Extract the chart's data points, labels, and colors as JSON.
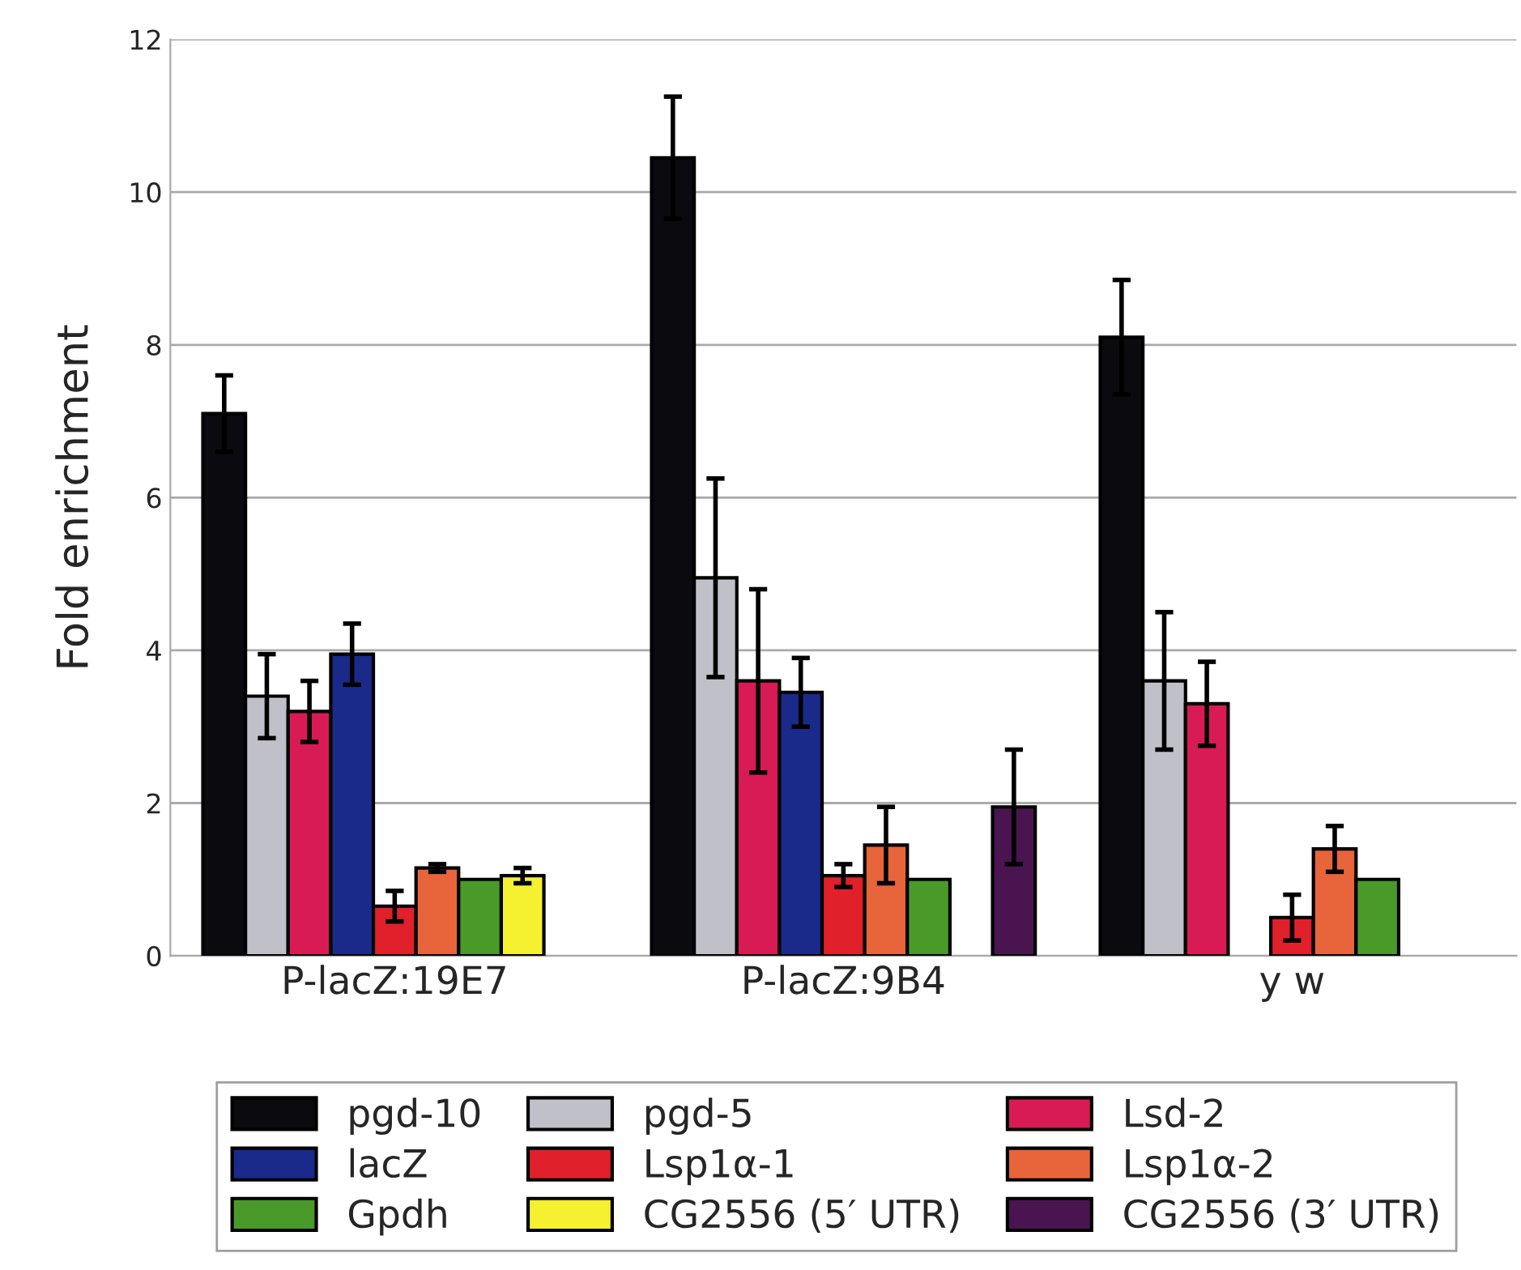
{
  "chart_data": {
    "type": "bar",
    "ylabel": "Fold enrichment",
    "categories": [
      "P-lacZ:19E7",
      "P-lacZ:9B4",
      "y w"
    ],
    "series": [
      {
        "name": "pgd-10",
        "color": "#0a0a0f",
        "values": [
          7.1,
          10.45,
          8.1
        ],
        "errors": [
          0.5,
          0.8,
          0.75
        ]
      },
      {
        "name": "pgd-5",
        "color": "#c0c0c8",
        "values": [
          3.4,
          4.95,
          3.6
        ],
        "errors": [
          0.55,
          1.3,
          0.9
        ]
      },
      {
        "name": "Lsd-2",
        "color": "#d81b55",
        "values": [
          3.2,
          3.6,
          3.3
        ],
        "errors": [
          0.4,
          1.2,
          0.55
        ]
      },
      {
        "name": "lacZ",
        "color": "#1a2a8a",
        "values": [
          3.95,
          3.45,
          null
        ],
        "errors": [
          0.4,
          0.45,
          null
        ]
      },
      {
        "name": "Lsp1α-1",
        "color": "#e0202a",
        "values": [
          0.65,
          1.05,
          0.5
        ],
        "errors": [
          0.2,
          0.15,
          0.3
        ]
      },
      {
        "name": "Lsp1α-2",
        "color": "#e8643a",
        "values": [
          1.15,
          1.45,
          1.4
        ],
        "errors": [
          0.05,
          0.5,
          0.3
        ]
      },
      {
        "name": "Gpdh",
        "color": "#4a9a2a",
        "values": [
          1.0,
          1.0,
          1.0
        ]
      },
      {
        "name": "CG2556 (5′ UTR)",
        "color": "#f5f030",
        "values": [
          1.05,
          null,
          null
        ],
        "errors": [
          0.1,
          null,
          null
        ]
      },
      {
        "name": "CG2556 (3′ UTR)",
        "color": "#4a1450",
        "values": [
          null,
          1.95,
          null
        ],
        "errors": [
          null,
          0.75,
          null
        ]
      }
    ],
    "ylim": [
      0,
      12
    ],
    "yticks": [
      0,
      2,
      4,
      6,
      8,
      10,
      12
    ],
    "grid": "y",
    "legend": "bottom"
  }
}
